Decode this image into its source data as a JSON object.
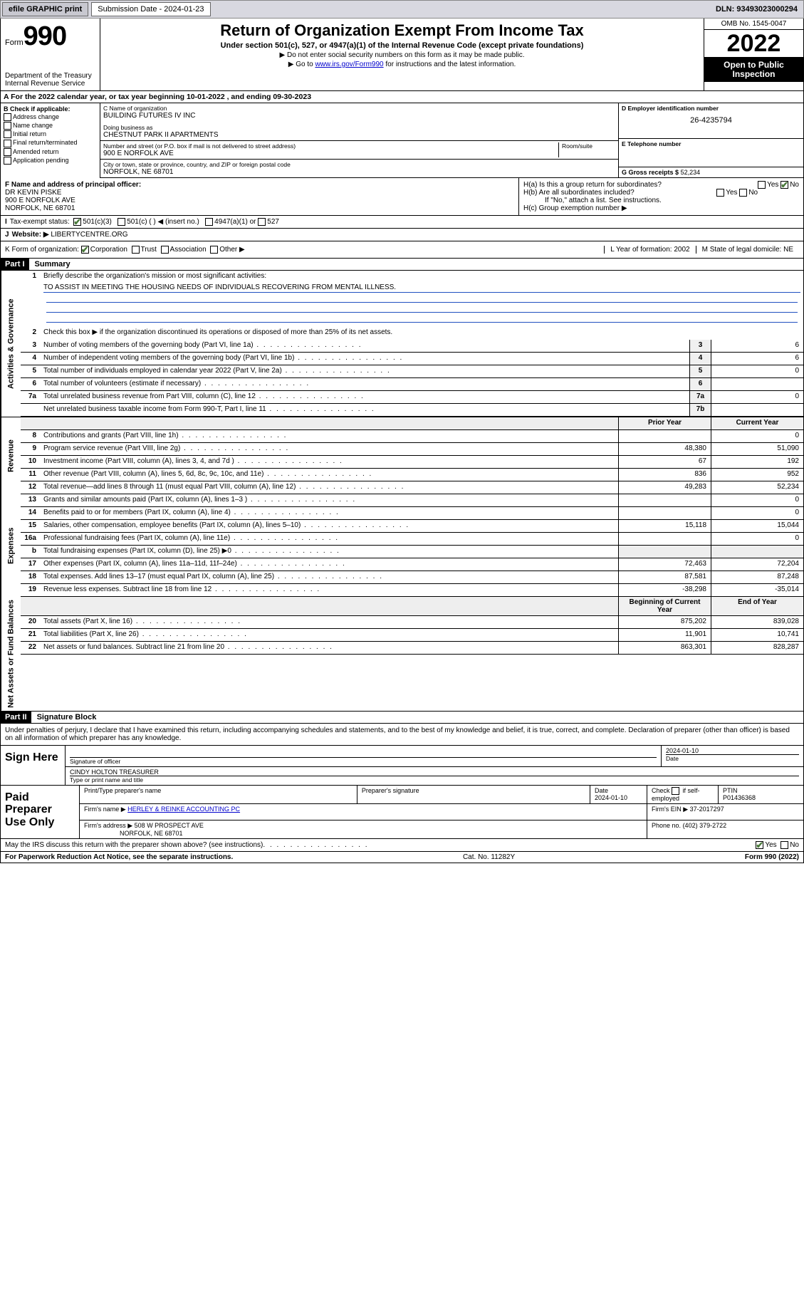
{
  "topbar": {
    "efile": "efile GRAPHIC print",
    "subdate_lbl": "Submission Date - 2024-01-23",
    "dln": "DLN: 93493023000294"
  },
  "header": {
    "form_word": "Form",
    "form_num": "990",
    "dept": "Department of the Treasury",
    "irs": "Internal Revenue Service",
    "title": "Return of Organization Exempt From Income Tax",
    "sub1": "Under section 501(c), 527, or 4947(a)(1) of the Internal Revenue Code (except private foundations)",
    "sub2": "▶ Do not enter social security numbers on this form as it may be made public.",
    "sub3_pre": "▶ Go to ",
    "sub3_link": "www.irs.gov/Form990",
    "sub3_post": " for instructions and the latest information.",
    "omb": "OMB No. 1545-0047",
    "year": "2022",
    "insp1": "Open to Public",
    "insp2": "Inspection"
  },
  "row_a": "A For the 2022 calendar year, or tax year beginning 10-01-2022   , and ending 09-30-2023",
  "col_b": {
    "hdr": "B Check if applicable:",
    "items": [
      "Address change",
      "Name change",
      "Initial return",
      "Final return/terminated",
      "Amended return",
      "Application pending"
    ]
  },
  "c": {
    "name_lbl": "C Name of organization",
    "name": "BUILDING FUTURES IV INC",
    "dba_lbl": "Doing business as",
    "dba": "CHESTNUT PARK II APARTMENTS",
    "addr_lbl": "Number and street (or P.O. box if mail is not delivered to street address)",
    "room_lbl": "Room/suite",
    "addr": "900 E NORFOLK AVE",
    "city_lbl": "City or town, state or province, country, and ZIP or foreign postal code",
    "city": "NORFOLK, NE  68701"
  },
  "d": {
    "lbl": "D Employer identification number",
    "val": "26-4235794"
  },
  "e": {
    "lbl": "E Telephone number",
    "val": ""
  },
  "g": {
    "lbl": "G Gross receipts $",
    "val": "52,234"
  },
  "f": {
    "lbl": "F Name and address of principal officer:",
    "l1": "DR KEVIN PISKE",
    "l2": "900 E NORFOLK AVE",
    "l3": "NORFOLK, NE  68701"
  },
  "h": {
    "a": "H(a)  Is this a group return for subordinates?",
    "b": "H(b)  Are all subordinates included?",
    "note": "If \"No,\" attach a list. See instructions.",
    "c": "H(c)  Group exemption number ▶"
  },
  "i": {
    "lbl": "Tax-exempt status:",
    "o1": "501(c)(3)",
    "o2": "501(c) (  ) ◀ (insert no.)",
    "o3": "4947(a)(1) or",
    "o4": "527"
  },
  "j": {
    "lbl": "Website: ▶",
    "val": "LIBERTYCENTRE.ORG"
  },
  "k": {
    "lbl": "K Form of organization:",
    "o1": "Corporation",
    "o2": "Trust",
    "o3": "Association",
    "o4": "Other ▶"
  },
  "l": {
    "lbl": "L Year of formation:",
    "val": "2002"
  },
  "m": {
    "lbl": "M State of legal domicile:",
    "val": "NE"
  },
  "part1": {
    "hdr": "Part I",
    "title": "Summary"
  },
  "s1": {
    "q1": "Briefly describe the organization's mission or most significant activities:",
    "mission": "TO ASSIST IN MEETING THE HOUSING NEEDS OF INDIVIDUALS RECOVERING FROM MENTAL ILLNESS.",
    "q2": "Check this box ▶      if the organization discontinued its operations or disposed of more than 25% of its net assets.",
    "rows": [
      {
        "n": "3",
        "t": "Number of voting members of the governing body (Part VI, line 1a)",
        "box": "3",
        "v": "6"
      },
      {
        "n": "4",
        "t": "Number of independent voting members of the governing body (Part VI, line 1b)",
        "box": "4",
        "v": "6"
      },
      {
        "n": "5",
        "t": "Total number of individuals employed in calendar year 2022 (Part V, line 2a)",
        "box": "5",
        "v": "0"
      },
      {
        "n": "6",
        "t": "Total number of volunteers (estimate if necessary)",
        "box": "6",
        "v": ""
      },
      {
        "n": "7a",
        "t": "Total unrelated business revenue from Part VIII, column (C), line 12",
        "box": "7a",
        "v": "0"
      },
      {
        "n": "",
        "t": "Net unrelated business taxable income from Form 990-T, Part I, line 11",
        "box": "7b",
        "v": ""
      }
    ]
  },
  "cols": {
    "prior": "Prior Year",
    "current": "Current Year",
    "boy": "Beginning of Current Year",
    "eoy": "End of Year"
  },
  "rev": [
    {
      "n": "8",
      "t": "Contributions and grants (Part VIII, line 1h)",
      "p": "",
      "c": "0"
    },
    {
      "n": "9",
      "t": "Program service revenue (Part VIII, line 2g)",
      "p": "48,380",
      "c": "51,090"
    },
    {
      "n": "10",
      "t": "Investment income (Part VIII, column (A), lines 3, 4, and 7d )",
      "p": "67",
      "c": "192"
    },
    {
      "n": "11",
      "t": "Other revenue (Part VIII, column (A), lines 5, 6d, 8c, 9c, 10c, and 11e)",
      "p": "836",
      "c": "952"
    },
    {
      "n": "12",
      "t": "Total revenue—add lines 8 through 11 (must equal Part VIII, column (A), line 12)",
      "p": "49,283",
      "c": "52,234"
    }
  ],
  "exp": [
    {
      "n": "13",
      "t": "Grants and similar amounts paid (Part IX, column (A), lines 1–3 )",
      "p": "",
      "c": "0"
    },
    {
      "n": "14",
      "t": "Benefits paid to or for members (Part IX, column (A), line 4)",
      "p": "",
      "c": "0"
    },
    {
      "n": "15",
      "t": "Salaries, other compensation, employee benefits (Part IX, column (A), lines 5–10)",
      "p": "15,118",
      "c": "15,044"
    },
    {
      "n": "16a",
      "t": "Professional fundraising fees (Part IX, column (A), line 11e)",
      "p": "",
      "c": "0"
    },
    {
      "n": "b",
      "t": "Total fundraising expenses (Part IX, column (D), line 25) ▶0",
      "p": "",
      "c": "",
      "gray": true
    },
    {
      "n": "17",
      "t": "Other expenses (Part IX, column (A), lines 11a–11d, 11f–24e)",
      "p": "72,463",
      "c": "72,204"
    },
    {
      "n": "18",
      "t": "Total expenses. Add lines 13–17 (must equal Part IX, column (A), line 25)",
      "p": "87,581",
      "c": "87,248"
    },
    {
      "n": "19",
      "t": "Revenue less expenses. Subtract line 18 from line 12",
      "p": "-38,298",
      "c": "-35,014"
    }
  ],
  "net": [
    {
      "n": "20",
      "t": "Total assets (Part X, line 16)",
      "p": "875,202",
      "c": "839,028"
    },
    {
      "n": "21",
      "t": "Total liabilities (Part X, line 26)",
      "p": "11,901",
      "c": "10,741"
    },
    {
      "n": "22",
      "t": "Net assets or fund balances. Subtract line 21 from line 20",
      "p": "863,301",
      "c": "828,287"
    }
  ],
  "side": {
    "gov": "Activities & Governance",
    "rev": "Revenue",
    "exp": "Expenses",
    "net": "Net Assets or Fund Balances"
  },
  "part2": {
    "hdr": "Part II",
    "title": "Signature Block"
  },
  "sig": {
    "decl": "Under penalties of perjury, I declare that I have examined this return, including accompanying schedules and statements, and to the best of my knowledge and belief, it is true, correct, and complete. Declaration of preparer (other than officer) is based on all information of which preparer has any knowledge.",
    "here": "Sign Here",
    "sigoff": "Signature of officer",
    "date": "Date",
    "dateval": "2024-01-10",
    "name": "CINDY HOLTON  TREASURER",
    "namelbl": "Type or print name and title"
  },
  "paid": {
    "lbl": "Paid Preparer Use Only",
    "h1": "Print/Type preparer's name",
    "h2": "Preparer's signature",
    "h3": "Date",
    "h3v": "2024-01-10",
    "h4a": "Check",
    "h4b": "if self-employed",
    "h5": "PTIN",
    "h5v": "P01436368",
    "firm_lbl": "Firm's name    ▶",
    "firm": "HERLEY & REINKE ACCOUNTING PC",
    "ein_lbl": "Firm's EIN ▶",
    "ein": "37-2017297",
    "addr_lbl": "Firm's address ▶",
    "addr1": "508 W PROSPECT AVE",
    "addr2": "NORFOLK, NE  68701",
    "ph_lbl": "Phone no.",
    "ph": "(402) 379-2722"
  },
  "discuss": "May the IRS discuss this return with the preparer shown above? (see instructions)",
  "footer": {
    "l": "For Paperwork Reduction Act Notice, see the separate instructions.",
    "m": "Cat. No. 11282Y",
    "r": "Form 990 (2022)"
  }
}
